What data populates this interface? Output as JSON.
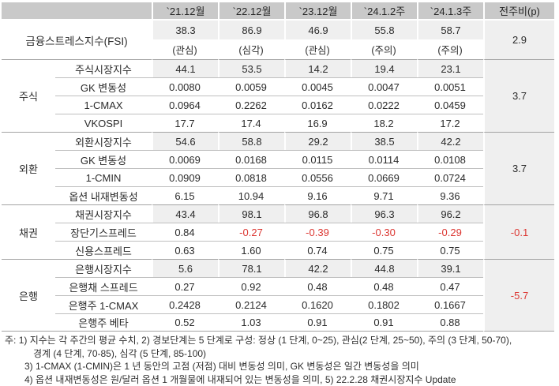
{
  "table": {
    "header": {
      "corner": "",
      "columns": [
        "`21.12월",
        "`22.12월",
        "`23.12월",
        "`24.1.2주",
        "`24.1.3주"
      ],
      "wow_label": "전주비(p)"
    },
    "fsi": {
      "label": "금융스트레스지수(FSI)",
      "values": [
        "38.3",
        "86.9",
        "46.9",
        "55.8",
        "58.7"
      ],
      "statuses": [
        "(관심)",
        "(심각)",
        "(관심)",
        "(주의)",
        "(주의)"
      ],
      "wow": "2.9"
    },
    "sections": [
      {
        "category": "주식",
        "wow": "3.7",
        "rows": [
          {
            "label": "주식시장지수",
            "values": [
              "44.1",
              "53.5",
              "14.2",
              "19.4",
              "23.1"
            ]
          },
          {
            "label": "GK 변동성",
            "values": [
              "0.0080",
              "0.0059",
              "0.0045",
              "0.0047",
              "0.0051"
            ]
          },
          {
            "label": "1-CMAX",
            "values": [
              "0.0964",
              "0.2262",
              "0.0162",
              "0.0222",
              "0.0459"
            ]
          },
          {
            "label": "VKOSPI",
            "values": [
              "17.7",
              "17.4",
              "16.9",
              "18.2",
              "17.2"
            ]
          }
        ]
      },
      {
        "category": "외환",
        "wow": "3.7",
        "rows": [
          {
            "label": "외환시장지수",
            "values": [
              "54.6",
              "58.8",
              "29.2",
              "38.5",
              "42.2"
            ]
          },
          {
            "label": "GK 변동성",
            "values": [
              "0.0069",
              "0.0168",
              "0.0115",
              "0.0114",
              "0.0108"
            ]
          },
          {
            "label": "1-CMIN",
            "values": [
              "0.0909",
              "0.0818",
              "0.0556",
              "0.0669",
              "0.0724"
            ]
          },
          {
            "label": "옵션 내재변동성",
            "values": [
              "6.15",
              "10.94",
              "9.16",
              "9.71",
              "9.36"
            ]
          }
        ]
      },
      {
        "category": "채권",
        "wow": "-0.1",
        "rows": [
          {
            "label": "채권시장지수",
            "values": [
              "43.4",
              "98.1",
              "96.8",
              "96.3",
              "96.2"
            ]
          },
          {
            "label": "장단기스프레드",
            "values": [
              "0.84",
              "-0.27",
              "-0.39",
              "-0.30",
              "-0.29"
            ]
          },
          {
            "label": "신용스프레드",
            "values": [
              "0.63",
              "1.60",
              "0.74",
              "0.75",
              "0.75"
            ]
          }
        ]
      },
      {
        "category": "은행",
        "wow": "-5.7",
        "rows": [
          {
            "label": "은행시장지수",
            "values": [
              "5.6",
              "78.1",
              "42.2",
              "44.8",
              "39.1"
            ]
          },
          {
            "label": "은행채 스프레드",
            "values": [
              "0.27",
              "0.92",
              "0.48",
              "0.48",
              "0.47"
            ]
          },
          {
            "label": "은행주 1-CMAX",
            "values": [
              "0.2428",
              "0.2124",
              "0.1620",
              "0.1802",
              "0.1667"
            ]
          },
          {
            "label": "은행주 베타",
            "values": [
              "0.52",
              "1.03",
              "0.91",
              "0.91",
              "0.88"
            ]
          }
        ]
      }
    ]
  },
  "footnotes": {
    "line1": "주: 1) 지수는 각 주간의 평균 수치, 2) 경보단계는 5 단계로 구성: 정상 (1 단계, 0~25), 관심(2 단계, 25~50), 주의 (3 단계, 50-70),",
    "line2": "경계 (4 단계, 70-85), 심각 (5 단계, 85-100)",
    "line3": "3) 1-CMAX (1-CMIN)은 1 년 동안의 고점 (저점) 대비 변동성 의미, GK 변동성은 일간 변동성을 의미",
    "line4": "4) 옵션 내재변동성은 원/달러 옵션 1 개월물에 내재되어 있는 변동성을 의미, 5) 22.2.28 채권시장지수 Update"
  },
  "colors": {
    "header_bg": "#c9c9c9",
    "shaded_cell_bg": "#efefef",
    "negative_text": "#dc3732",
    "section_line": "#a3a3a3",
    "subrow_line": "#bfbfbf"
  }
}
